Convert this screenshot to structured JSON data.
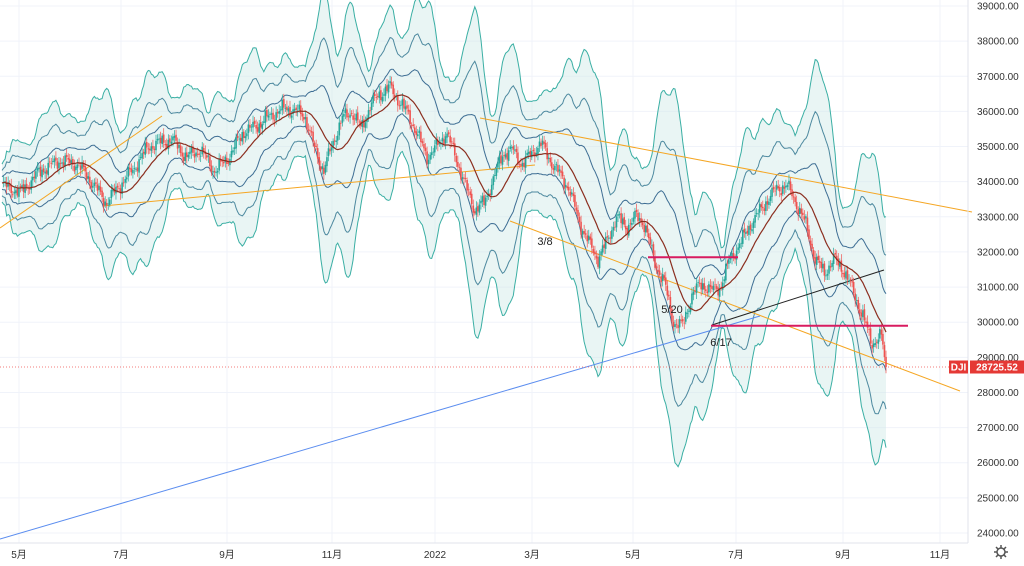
{
  "chart_data": {
    "type": "candlestick",
    "symbol": "DJI",
    "last_price": "28725.52",
    "ylim": [
      23600,
      39200
    ],
    "y_ticks": [
      "39000.00",
      "38000.00",
      "37000.00",
      "36000.00",
      "35000.00",
      "34000.00",
      "33000.00",
      "32000.00",
      "31000.00",
      "30000.00",
      "29000.00",
      "28000.00",
      "27000.00",
      "26000.00",
      "25000.00",
      "24000.00"
    ],
    "x_ticks": [
      "5月",
      "7月",
      "9月",
      "11月",
      "2022",
      "3月",
      "5月",
      "7月",
      "9月",
      "11月"
    ],
    "price_path": [
      [
        0,
        33900
      ],
      [
        4,
        33700
      ],
      [
        8,
        34300
      ],
      [
        12,
        34600
      ],
      [
        16,
        34500
      ],
      [
        19,
        34000
      ],
      [
        22,
        33400
      ],
      [
        25,
        33900
      ],
      [
        28,
        34400
      ],
      [
        31,
        35000
      ],
      [
        33,
        35100
      ],
      [
        36,
        35200
      ],
      [
        39,
        34700
      ],
      [
        42,
        34900
      ],
      [
        45,
        34300
      ],
      [
        48,
        34700
      ],
      [
        51,
        35400
      ],
      [
        54,
        35600
      ],
      [
        57,
        35900
      ],
      [
        60,
        36100
      ],
      [
        62,
        36000
      ],
      [
        64,
        35900
      ],
      [
        66,
        35000
      ],
      [
        68,
        34300
      ],
      [
        70,
        35100
      ],
      [
        72,
        35800
      ],
      [
        74,
        36000
      ],
      [
        76,
        35500
      ],
      [
        78,
        36200
      ],
      [
        80,
        36500
      ],
      [
        82,
        36700
      ],
      [
        84,
        36300
      ],
      [
        86,
        35900
      ],
      [
        88,
        35300
      ],
      [
        90,
        34700
      ],
      [
        92,
        35000
      ],
      [
        94,
        35400
      ],
      [
        96,
        34700
      ],
      [
        98,
        33900
      ],
      [
        100,
        33200
      ],
      [
        102,
        33400
      ],
      [
        104,
        34100
      ],
      [
        106,
        34800
      ],
      [
        108,
        34900
      ],
      [
        110,
        34500
      ],
      [
        112,
        34800
      ],
      [
        114,
        35100
      ],
      [
        116,
        34600
      ],
      [
        118,
        34200
      ],
      [
        120,
        33800
      ],
      [
        122,
        32900
      ],
      [
        124,
        32300
      ],
      [
        126,
        31800
      ],
      [
        128,
        32300
      ],
      [
        130,
        33000
      ],
      [
        132,
        32700
      ],
      [
        134,
        33000
      ],
      [
        136,
        32800
      ],
      [
        138,
        31700
      ],
      [
        140,
        31200
      ],
      [
        142,
        30000
      ],
      [
        144,
        29900
      ],
      [
        146,
        30800
      ],
      [
        148,
        31100
      ],
      [
        150,
        30900
      ],
      [
        152,
        31000
      ],
      [
        154,
        31800
      ],
      [
        156,
        32200
      ],
      [
        158,
        32700
      ],
      [
        160,
        33100
      ],
      [
        162,
        33500
      ],
      [
        164,
        33800
      ],
      [
        166,
        33900
      ],
      [
        168,
        33400
      ],
      [
        170,
        32800
      ],
      [
        172,
        31800
      ],
      [
        174,
        31400
      ],
      [
        176,
        31800
      ],
      [
        178,
        31500
      ],
      [
        180,
        30900
      ],
      [
        182,
        30200
      ],
      [
        184,
        29400
      ],
      [
        186,
        29600
      ],
      [
        187,
        28726
      ]
    ],
    "ma_period": 20,
    "band_multipliers": [
      1,
      2,
      3
    ],
    "annotations": {
      "a1": "3/8",
      "a2": "5/20",
      "a3": "6/17"
    },
    "horizontal_levels": [
      31850,
      29900
    ]
  }
}
